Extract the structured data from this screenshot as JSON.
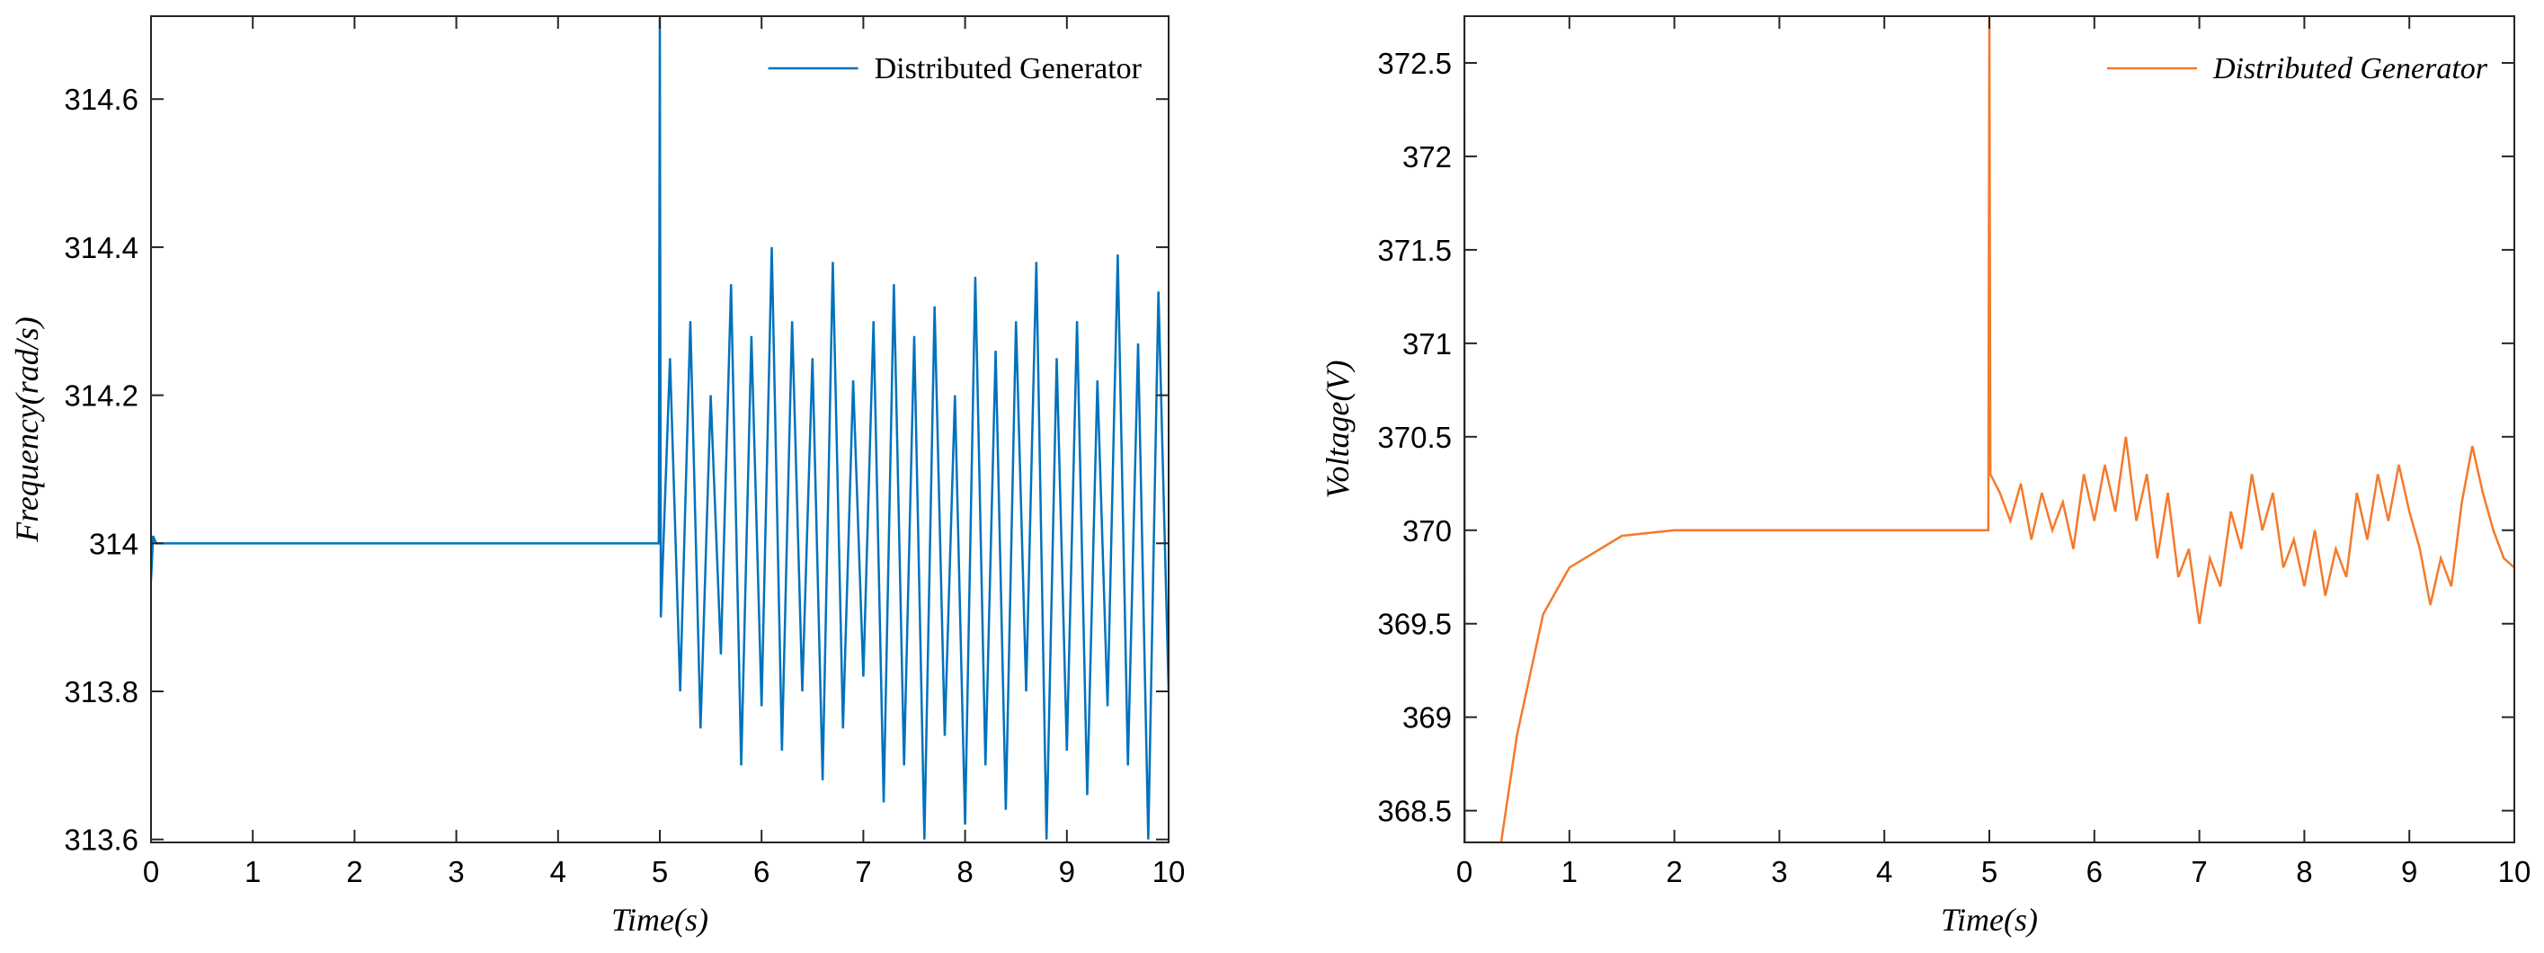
{
  "chart_data": [
    {
      "type": "line",
      "xlabel": "Time(s)",
      "ylabel": "Frequency(rad/s)",
      "xlim": [
        0,
        10
      ],
      "xticks": [
        0,
        1,
        2,
        3,
        4,
        5,
        6,
        7,
        8,
        9,
        10
      ],
      "ylim": [
        313.596,
        314.712
      ],
      "yticks": [
        313.6,
        313.8,
        314,
        314.2,
        314.4,
        314.6
      ],
      "legend": "upper right",
      "x": [
        0,
        0.02,
        0.05,
        4.99,
        5,
        5.01,
        5.1,
        5.2,
        5.3,
        5.4,
        5.5,
        5.6,
        5.7,
        5.8,
        5.9,
        6,
        6.1,
        6.2,
        6.3,
        6.4,
        6.5,
        6.6,
        6.7,
        6.8,
        6.9,
        7,
        7.1,
        7.2,
        7.3,
        7.4,
        7.5,
        7.6,
        7.7,
        7.8,
        7.9,
        8,
        8.1,
        8.2,
        8.3,
        8.4,
        8.5,
        8.6,
        8.7,
        8.8,
        8.9,
        9,
        9.1,
        9.2,
        9.3,
        9.4,
        9.5,
        9.6,
        9.7,
        9.8,
        9.9,
        10
      ],
      "series": [
        {
          "name": "Distributed Generator",
          "color": "#0072bd",
          "values": [
            313.95,
            314.01,
            314,
            314,
            314.71,
            313.9,
            314.25,
            313.8,
            314.3,
            313.75,
            314.2,
            313.85,
            314.35,
            313.7,
            314.28,
            313.78,
            314.4,
            313.72,
            314.3,
            313.8,
            314.25,
            313.68,
            314.38,
            313.75,
            314.22,
            313.82,
            314.3,
            313.65,
            314.35,
            313.7,
            314.28,
            313.6,
            314.32,
            313.74,
            314.2,
            313.62,
            314.36,
            313.7,
            314.26,
            313.64,
            314.3,
            313.8,
            314.38,
            313.6,
            314.25,
            313.72,
            314.3,
            313.66,
            314.22,
            313.78,
            314.39,
            313.7,
            314.27,
            313.6,
            314.34,
            313.8
          ]
        }
      ]
    },
    {
      "type": "line",
      "xlabel": "Time(s)",
      "ylabel": "Voltage(V)",
      "xlim": [
        0,
        10
      ],
      "xticks": [
        0,
        1,
        2,
        3,
        4,
        5,
        6,
        7,
        8,
        9,
        10
      ],
      "ylim": [
        368.33,
        372.75
      ],
      "yticks": [
        368.5,
        369,
        369.5,
        370,
        370.5,
        371,
        371.5,
        372,
        372.5
      ],
      "legend": "upper right",
      "x": [
        0,
        0.005,
        0.35,
        0.5,
        0.75,
        1,
        1.5,
        2,
        4.99,
        5,
        5.01,
        5.1,
        5.2,
        5.3,
        5.4,
        5.5,
        5.6,
        5.7,
        5.8,
        5.9,
        6,
        6.1,
        6.2,
        6.3,
        6.4,
        6.5,
        6.6,
        6.7,
        6.8,
        6.9,
        7,
        7.1,
        7.2,
        7.3,
        7.4,
        7.5,
        7.6,
        7.7,
        7.8,
        7.9,
        8,
        8.1,
        8.2,
        8.3,
        8.4,
        8.5,
        8.6,
        8.7,
        8.8,
        8.9,
        9,
        9.1,
        9.2,
        9.3,
        9.4,
        9.5,
        9.6,
        9.7,
        9.8,
        9.9,
        10
      ],
      "series": [
        {
          "name": "Distributed Generator",
          "color": "#f47a2c",
          "values": [
            372.75,
            368.33,
            368.33,
            368.9,
            369.55,
            369.8,
            369.97,
            370,
            370,
            372.75,
            370.3,
            370.2,
            370.05,
            370.25,
            369.95,
            370.2,
            370,
            370.15,
            369.9,
            370.3,
            370.05,
            370.35,
            370.1,
            370.5,
            370.05,
            370.3,
            369.85,
            370.2,
            369.75,
            369.9,
            369.5,
            369.85,
            369.7,
            370.1,
            369.9,
            370.3,
            370,
            370.2,
            369.8,
            369.95,
            369.7,
            370,
            369.65,
            369.9,
            369.75,
            370.2,
            369.95,
            370.3,
            370.05,
            370.35,
            370.1,
            369.9,
            369.6,
            369.85,
            369.7,
            370.15,
            370.45,
            370.2,
            370,
            369.85,
            369.8
          ]
        }
      ]
    }
  ]
}
